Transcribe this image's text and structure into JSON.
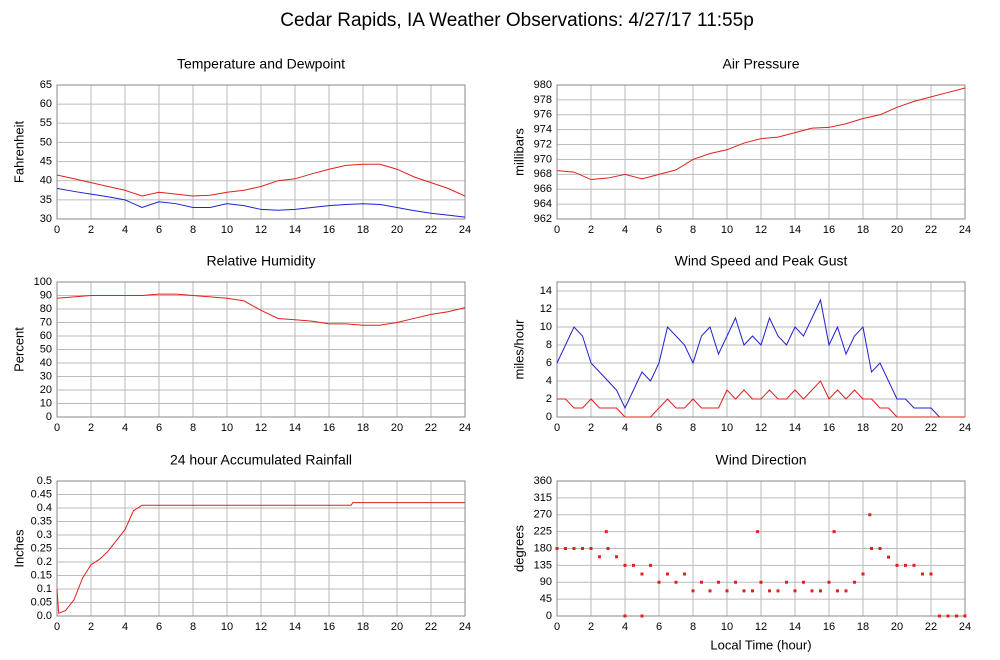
{
  "title": "Cedar Rapids, IA Weather Observations: 4/27/17 11:55p",
  "chart_data": [
    {
      "type": "line",
      "title": "Temperature and Dewpoint",
      "ylabel": "Fahrenheit",
      "x": [
        0,
        1,
        2,
        3,
        4,
        5,
        6,
        7,
        8,
        9,
        10,
        11,
        12,
        13,
        14,
        15,
        16,
        17,
        18,
        19,
        20,
        21,
        22,
        23,
        24
      ],
      "series": [
        {
          "color": "#e02020",
          "values": [
            41.5,
            40.5,
            39.5,
            38.5,
            37.5,
            36,
            37,
            36.5,
            36,
            36.2,
            37,
            37.5,
            38.5,
            40,
            40.5,
            41.8,
            43,
            44,
            44.3,
            44.3,
            43,
            41,
            39.5,
            38,
            36
          ]
        },
        {
          "color": "#2020d0",
          "values": [
            38,
            37.2,
            36.5,
            35.8,
            35,
            33,
            34.5,
            34,
            33,
            33,
            34,
            33.5,
            32.5,
            32.3,
            32.5,
            33,
            33.5,
            33.8,
            34,
            33.8,
            33,
            32.2,
            31.5,
            31,
            30.5
          ]
        }
      ],
      "xlim": [
        0,
        24
      ],
      "xticks": [
        0,
        2,
        4,
        6,
        8,
        10,
        12,
        14,
        16,
        18,
        20,
        22,
        24
      ],
      "ylim": [
        30,
        65
      ],
      "yticks": [
        30,
        35,
        40,
        45,
        50,
        55,
        60,
        65
      ],
      "grid": true
    },
    {
      "type": "line",
      "title": "Air Pressure",
      "ylabel": "millibars",
      "x": [
        0,
        1,
        2,
        3,
        4,
        5,
        6,
        7,
        8,
        9,
        10,
        11,
        12,
        13,
        14,
        15,
        16,
        17,
        18,
        19,
        20,
        21,
        22,
        23,
        24
      ],
      "series": [
        {
          "color": "#e02020",
          "values": [
            968.5,
            968.3,
            967.3,
            967.5,
            968,
            967.4,
            968,
            968.6,
            970,
            970.8,
            971.3,
            972.2,
            972.8,
            973,
            973.6,
            974.2,
            974.3,
            974.8,
            975.5,
            976,
            977,
            977.8,
            978.4,
            979,
            979.6
          ]
        }
      ],
      "xlim": [
        0,
        24
      ],
      "xticks": [
        0,
        2,
        4,
        6,
        8,
        10,
        12,
        14,
        16,
        18,
        20,
        22,
        24
      ],
      "ylim": [
        962,
        980
      ],
      "yticks": [
        962,
        964,
        966,
        968,
        970,
        972,
        974,
        976,
        978,
        980
      ],
      "grid": true
    },
    {
      "type": "line",
      "title": "Relative Humidity",
      "ylabel": "Percent",
      "x": [
        0,
        1,
        2,
        3,
        4,
        5,
        6,
        7,
        8,
        9,
        10,
        11,
        12,
        13,
        14,
        15,
        16,
        17,
        18,
        19,
        20,
        21,
        22,
        23,
        24
      ],
      "series": [
        {
          "color": "#e02020",
          "values": [
            88,
            89,
            90,
            90,
            90,
            90,
            91,
            91,
            90,
            89,
            88,
            86,
            79,
            73,
            72,
            71,
            69,
            69,
            68,
            68,
            70,
            73,
            76,
            78,
            81
          ]
        }
      ],
      "xlim": [
        0,
        24
      ],
      "xticks": [
        0,
        2,
        4,
        6,
        8,
        10,
        12,
        14,
        16,
        18,
        20,
        22,
        24
      ],
      "ylim": [
        0,
        100
      ],
      "yticks": [
        0,
        10,
        20,
        30,
        40,
        50,
        60,
        70,
        80,
        90,
        100
      ],
      "grid": true
    },
    {
      "type": "line",
      "title": "Wind Speed and Peak Gust",
      "ylabel": "miles/hour",
      "x": [
        0,
        0.5,
        1,
        1.5,
        2,
        2.5,
        3,
        3.5,
        4,
        4.5,
        5,
        5.5,
        6,
        6.5,
        7,
        7.5,
        8,
        8.5,
        9,
        9.5,
        10,
        10.5,
        11,
        11.5,
        12,
        12.5,
        13,
        13.5,
        14,
        14.5,
        15,
        15.5,
        16,
        16.5,
        17,
        17.5,
        18,
        18.5,
        19,
        19.5,
        20,
        20.5,
        21,
        21.5,
        22,
        22.5,
        23,
        23.5,
        24
      ],
      "series": [
        {
          "color": "#2020d0",
          "values": [
            6,
            8,
            10,
            9,
            6,
            5,
            4,
            3,
            1,
            3,
            5,
            4,
            6,
            10,
            9,
            8,
            6,
            9,
            10,
            7,
            9,
            11,
            8,
            9,
            8,
            11,
            9,
            8,
            10,
            9,
            11,
            13,
            8,
            10,
            7,
            9,
            10,
            5,
            6,
            4,
            2,
            2,
            1,
            1,
            1,
            0,
            0,
            0,
            0
          ]
        },
        {
          "color": "#e02020",
          "values": [
            2,
            2,
            1,
            1,
            2,
            1,
            1,
            1,
            0,
            0,
            0,
            0,
            1,
            2,
            1,
            1,
            2,
            1,
            1,
            1,
            3,
            2,
            3,
            2,
            2,
            3,
            2,
            2,
            3,
            2,
            3,
            4,
            2,
            3,
            2,
            3,
            2,
            2,
            1,
            1,
            0,
            0,
            0,
            0,
            0,
            0,
            0,
            0,
            0
          ]
        }
      ],
      "xlim": [
        0,
        24
      ],
      "xticks": [
        0,
        2,
        4,
        6,
        8,
        10,
        12,
        14,
        16,
        18,
        20,
        22,
        24
      ],
      "ylim": [
        0,
        15
      ],
      "yticks": [
        0,
        2,
        4,
        6,
        8,
        10,
        12,
        14
      ],
      "grid": true
    },
    {
      "type": "line",
      "title": "24 hour Accumulated Rainfall",
      "ylabel": "Inches",
      "x": [
        0,
        0.1,
        0.5,
        1,
        1.5,
        2,
        2.5,
        3,
        3.5,
        4,
        4.5,
        5,
        17.3,
        17.4,
        24
      ],
      "series": [
        {
          "color": "#e02020",
          "values": [
            0.1,
            0.01,
            0.02,
            0.06,
            0.14,
            0.19,
            0.21,
            0.24,
            0.28,
            0.32,
            0.39,
            0.41,
            0.41,
            0.42,
            0.42
          ]
        }
      ],
      "xlim": [
        0,
        24
      ],
      "xticks": [
        0,
        2,
        4,
        6,
        8,
        10,
        12,
        14,
        16,
        18,
        20,
        22,
        24
      ],
      "ylim": [
        0,
        0.5
      ],
      "yticks": [
        {
          "value": 0,
          "label": "0.0"
        },
        0.05,
        0.1,
        0.15,
        0.2,
        0.25,
        0.3,
        0.35,
        0.4,
        0.45,
        0.5
      ],
      "grid": true
    },
    {
      "type": "scatter",
      "title": "Wind Direction",
      "ylabel": "degrees",
      "xlabel": "Local Time (hour)",
      "x": [
        0,
        0.5,
        1,
        1.5,
        2,
        2.5,
        2.9,
        3,
        3.5,
        4,
        4,
        4.5,
        5,
        5,
        5.5,
        6,
        6.5,
        7,
        7.5,
        8,
        8.5,
        9,
        9.5,
        10,
        10.5,
        11,
        11.5,
        11.8,
        12,
        12.5,
        13,
        13.5,
        14,
        14.5,
        15,
        15.5,
        16,
        16.3,
        16.5,
        17,
        17.5,
        18,
        18.4,
        18.5,
        19,
        19.5,
        20,
        20.5,
        21,
        21.5,
        22,
        22.5,
        23,
        23.5,
        24
      ],
      "series": [
        {
          "color": "#e02020",
          "values": [
            180,
            180,
            180,
            180,
            180,
            158,
            225,
            180,
            158,
            135,
            0,
            135,
            112,
            0,
            135,
            90,
            112,
            90,
            112,
            67,
            90,
            67,
            90,
            67,
            90,
            67,
            67,
            225,
            90,
            67,
            67,
            90,
            67,
            90,
            67,
            67,
            90,
            225,
            67,
            67,
            90,
            112,
            270,
            180,
            180,
            157,
            135,
            135,
            135,
            112,
            112,
            0,
            0,
            0,
            0
          ]
        }
      ],
      "xlim": [
        0,
        24
      ],
      "xticks": [
        0,
        2,
        4,
        6,
        8,
        10,
        12,
        14,
        16,
        18,
        20,
        22,
        24
      ],
      "ylim": [
        0,
        360
      ],
      "yticks": [
        0,
        45,
        90,
        135,
        180,
        225,
        270,
        315,
        360
      ],
      "grid": true
    }
  ]
}
